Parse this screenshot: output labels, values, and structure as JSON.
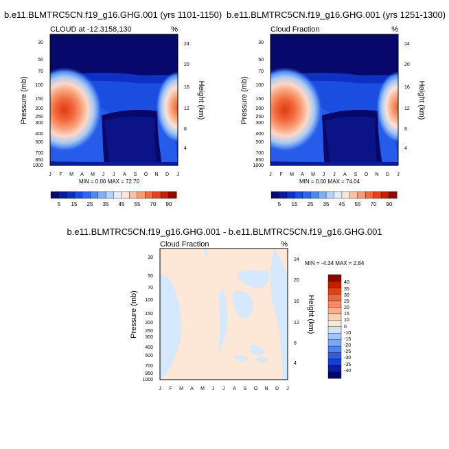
{
  "months": [
    "J",
    "F",
    "M",
    "A",
    "M",
    "J",
    "J",
    "A",
    "S",
    "O",
    "N",
    "D",
    "J"
  ],
  "pressure_ticks": [
    "30",
    "50",
    "70",
    "100",
    "150",
    "200",
    "250",
    "300",
    "400",
    "500",
    "700",
    "850",
    "1000"
  ],
  "height_ticks": [
    "24",
    "20",
    "16",
    "12",
    "8",
    "4"
  ],
  "colors": {
    "abs_scale": [
      "#08086b",
      "#0b1c99",
      "#0f30c4",
      "#1b4de0",
      "#2e68ee",
      "#4d87f0",
      "#7fb0f3",
      "#b3d3f7",
      "#e4ecf8",
      "#fce6dc",
      "#f9c2a6",
      "#f79a72",
      "#f26a3f",
      "#e8411c",
      "#c81f08",
      "#8f0a00"
    ],
    "diff_scale": [
      "#060673",
      "#0b1f9f",
      "#1a3ed1",
      "#2a5fe6",
      "#4d86ef",
      "#7aa8f2",
      "#a3c4f5",
      "#cfe4fb",
      "#fde7d7",
      "#fcd0b4",
      "#f9b08c",
      "#f58d63",
      "#f0663c",
      "#e4401c",
      "#c41e05",
      "#8a0a00"
    ]
  },
  "chart_data": [
    {
      "type": "heatmap",
      "title": "b.e11.BLMTRC5CN.f19_g16.GHG.001 (yrs 1101-1150)",
      "subtitle_left": "CLOUD at -12.3158,130",
      "units": "%",
      "xlabel": "",
      "ylabel": "Pressure (mb)",
      "ylabel_right": "Height (km)",
      "min_max_text": "MIN =   0.00 MAX =  72.70",
      "min": 0.0,
      "max": 72.7,
      "colorbar_labels": [
        "5",
        "15",
        "25",
        "35",
        "45",
        "55",
        "70",
        "90"
      ]
    },
    {
      "type": "heatmap",
      "title": "b.e11.BLMTRC5CN.f19_g16.GHG.001 (yrs 1251-1300)",
      "subtitle_left": "Cloud Fraction",
      "units": "%",
      "xlabel": "",
      "ylabel": "Pressure (mb)",
      "ylabel_right": "Height (km)",
      "min_max_text": "MIN =   0.00 MAX =  74.04",
      "min": 0.0,
      "max": 74.04,
      "colorbar_labels": [
        "5",
        "15",
        "25",
        "35",
        "45",
        "55",
        "70",
        "90"
      ]
    },
    {
      "type": "heatmap",
      "title": "b.e11.BLMTRC5CN.f19_g16.GHG.001 - b.e11.BLMTRC5CN.f19_g16.GHG.001",
      "subtitle_left": "Cloud Fraction",
      "units": "%",
      "xlabel": "",
      "ylabel": "Pressure (mb)",
      "ylabel_right": "Height (km)",
      "min_max_text": "MIN =  -4.34 MAX =   2.84",
      "min": -4.34,
      "max": 2.84,
      "colorbar_labels": [
        "40",
        "35",
        "30",
        "25",
        "20",
        "15",
        "10",
        "0",
        "-10",
        "-15",
        "-20",
        "-25",
        "-30",
        "-35",
        "-40"
      ]
    }
  ]
}
